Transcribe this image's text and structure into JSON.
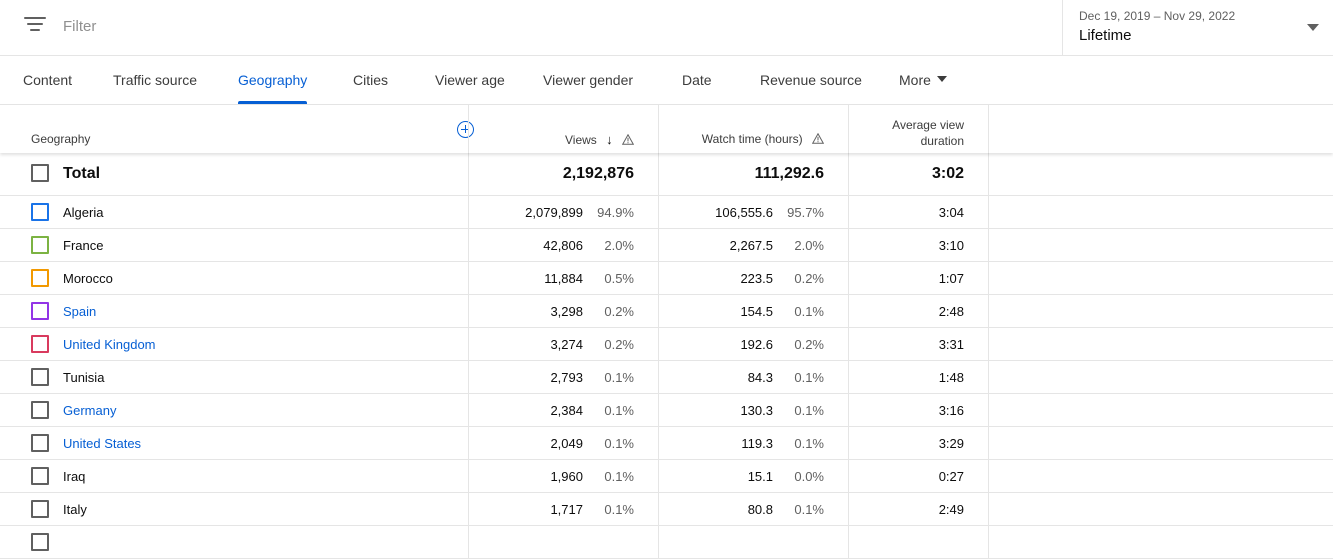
{
  "topbar": {
    "filter_placeholder": "Filter",
    "date_range": "Dec 19, 2019 – Nov 29, 2022",
    "date_label": "Lifetime"
  },
  "tabs": [
    {
      "label": "Content",
      "active": false
    },
    {
      "label": "Traffic source",
      "active": false
    },
    {
      "label": "Geography",
      "active": true
    },
    {
      "label": "Cities",
      "active": false
    },
    {
      "label": "Viewer age",
      "active": false
    },
    {
      "label": "Viewer gender",
      "active": false
    },
    {
      "label": "Date",
      "active": false
    },
    {
      "label": "Revenue source",
      "active": false
    },
    {
      "label": "More",
      "active": false
    }
  ],
  "table": {
    "headers": {
      "geography": "Geography",
      "views": "Views",
      "watch_time": "Watch time (hours)",
      "avd_line1": "Average view",
      "avd_line2": "duration"
    },
    "total": {
      "label": "Total",
      "views": "2,192,876",
      "watch_time": "111,292.6",
      "avd": "3:02"
    },
    "rows": [
      {
        "name": "Algeria",
        "link": false,
        "color": "#1a73e8",
        "views": "2,079,899",
        "views_pct": "94.9%",
        "watch": "106,555.6",
        "watch_pct": "95.7%",
        "avd": "3:04"
      },
      {
        "name": "France",
        "link": false,
        "color": "#7cb342",
        "views": "42,806",
        "views_pct": "2.0%",
        "watch": "2,267.5",
        "watch_pct": "2.0%",
        "avd": "3:10"
      },
      {
        "name": "Morocco",
        "link": false,
        "color": "#f29900",
        "views": "11,884",
        "views_pct": "0.5%",
        "watch": "223.5",
        "watch_pct": "0.2%",
        "avd": "1:07"
      },
      {
        "name": "Spain",
        "link": true,
        "color": "#9334e6",
        "views": "3,298",
        "views_pct": "0.2%",
        "watch": "154.5",
        "watch_pct": "0.1%",
        "avd": "2:48"
      },
      {
        "name": "United Kingdom",
        "link": true,
        "color": "#d93a5e",
        "views": "3,274",
        "views_pct": "0.2%",
        "watch": "192.6",
        "watch_pct": "0.2%",
        "avd": "3:31"
      },
      {
        "name": "Tunisia",
        "link": false,
        "color": "#606060",
        "views": "2,793",
        "views_pct": "0.1%",
        "watch": "84.3",
        "watch_pct": "0.1%",
        "avd": "1:48"
      },
      {
        "name": "Germany",
        "link": true,
        "color": "#606060",
        "views": "2,384",
        "views_pct": "0.1%",
        "watch": "130.3",
        "watch_pct": "0.1%",
        "avd": "3:16"
      },
      {
        "name": "United States",
        "link": true,
        "color": "#606060",
        "views": "2,049",
        "views_pct": "0.1%",
        "watch": "119.3",
        "watch_pct": "0.1%",
        "avd": "3:29"
      },
      {
        "name": "Iraq",
        "link": false,
        "color": "#606060",
        "views": "1,960",
        "views_pct": "0.1%",
        "watch": "15.1",
        "watch_pct": "0.0%",
        "avd": "0:27"
      },
      {
        "name": "Italy",
        "link": false,
        "color": "#606060",
        "views": "1,717",
        "views_pct": "0.1%",
        "watch": "80.8",
        "watch_pct": "0.1%",
        "avd": "2:49"
      }
    ]
  }
}
